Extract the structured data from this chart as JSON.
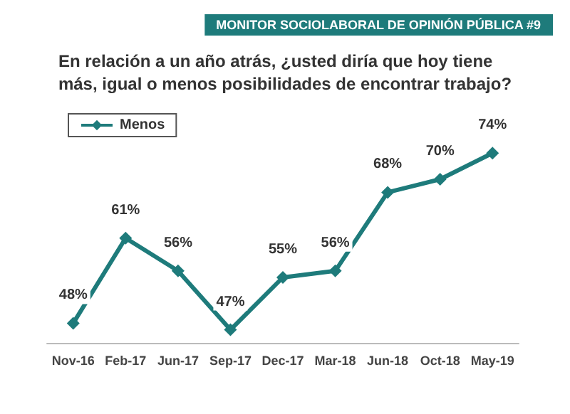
{
  "chart_data": {
    "type": "line",
    "title": "En relación a un año atrás, ¿usted diría que hoy tiene\nmás, igual o menos posibilidades de encontrar trabajo?",
    "annotations": [
      "MONITOR SOCIOLABORAL DE OPINIÓN PÚBLICA #9"
    ],
    "categories": [
      "Nov-16",
      "Feb-17",
      "Jun-17",
      "Sep-17",
      "Dec-17",
      "Mar-18",
      "Jun-18",
      "Oct-18",
      "May-19"
    ],
    "series": [
      {
        "name": "Menos",
        "color": "#1e7b7b",
        "values": [
          48,
          61,
          56,
          47,
          55,
          56,
          68,
          70,
          74
        ],
        "value_labels": [
          "48%",
          "61%",
          "56%",
          "47%",
          "55%",
          "56%",
          "68%",
          "70%",
          "74%"
        ]
      }
    ],
    "marker": "diamond",
    "legend": "top left",
    "grid": false,
    "tick_labels": "x"
  }
}
